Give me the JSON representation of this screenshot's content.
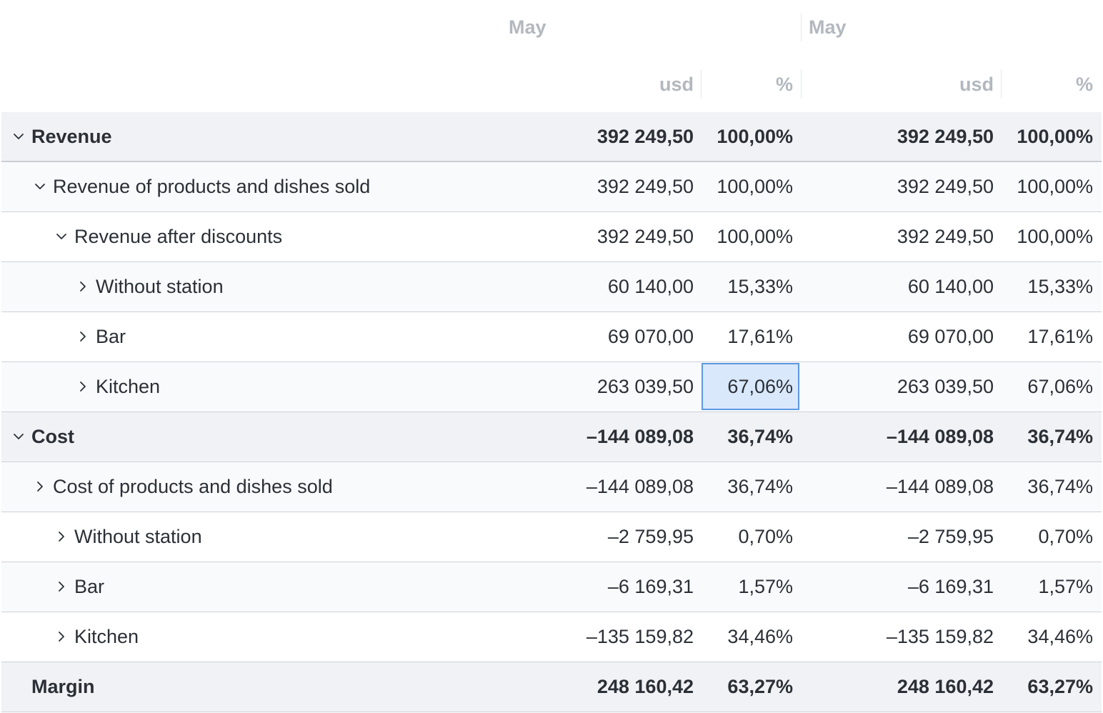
{
  "header": {
    "periods": [
      "May",
      "May"
    ],
    "columns": [
      "usd",
      "%",
      "usd",
      "%"
    ]
  },
  "rows": [
    {
      "label": "Revenue",
      "usd1": "392 249,50",
      "pct1": "100,00%",
      "usd2": "392 249,50",
      "pct2": "100,00%",
      "expander": "chevron-down"
    },
    {
      "label": "Revenue of products and dishes sold",
      "usd1": "392 249,50",
      "pct1": "100,00%",
      "usd2": "392 249,50",
      "pct2": "100,00%",
      "expander": "chevron-down"
    },
    {
      "label": "Revenue after discounts",
      "usd1": "392 249,50",
      "pct1": "100,00%",
      "usd2": "392 249,50",
      "pct2": "100,00%",
      "expander": "chevron-down"
    },
    {
      "label": "Without station",
      "usd1": "60 140,00",
      "pct1": "15,33%",
      "usd2": "60 140,00",
      "pct2": "15,33%",
      "expander": "chevron-right"
    },
    {
      "label": "Bar",
      "usd1": "69 070,00",
      "pct1": "17,61%",
      "usd2": "69 070,00",
      "pct2": "17,61%",
      "expander": "chevron-right"
    },
    {
      "label": "Kitchen",
      "usd1": "263 039,50",
      "pct1": "67,06%",
      "usd2": "263 039,50",
      "pct2": "67,06%",
      "expander": "chevron-right"
    },
    {
      "label": "Cost",
      "usd1": "–144 089,08",
      "pct1": "36,74%",
      "usd2": "–144 089,08",
      "pct2": "36,74%",
      "expander": "chevron-down"
    },
    {
      "label": "Cost of products and dishes sold",
      "usd1": "–144 089,08",
      "pct1": "36,74%",
      "usd2": "–144 089,08",
      "pct2": "36,74%",
      "expander": "chevron-right"
    },
    {
      "label": "Without station",
      "usd1": "–2 759,95",
      "pct1": "0,70%",
      "usd2": "–2 759,95",
      "pct2": "0,70%",
      "expander": "chevron-right"
    },
    {
      "label": "Bar",
      "usd1": "–6 169,31",
      "pct1": "1,57%",
      "usd2": "–6 169,31",
      "pct2": "1,57%",
      "expander": "chevron-right"
    },
    {
      "label": "Kitchen",
      "usd1": "–135 159,82",
      "pct1": "34,46%",
      "usd2": "–135 159,82",
      "pct2": "34,46%",
      "expander": "chevron-right"
    },
    {
      "label": "Margin",
      "usd1": "248 160,42",
      "pct1": "63,27%",
      "usd2": "248 160,42",
      "pct2": "63,27%",
      "expander": "none"
    }
  ],
  "colors": {
    "header_text": "#b3b8bf",
    "group_row_bg": "#f1f2f5",
    "selection_bg": "#d9e8fb",
    "selection_border": "#5e98e0"
  }
}
